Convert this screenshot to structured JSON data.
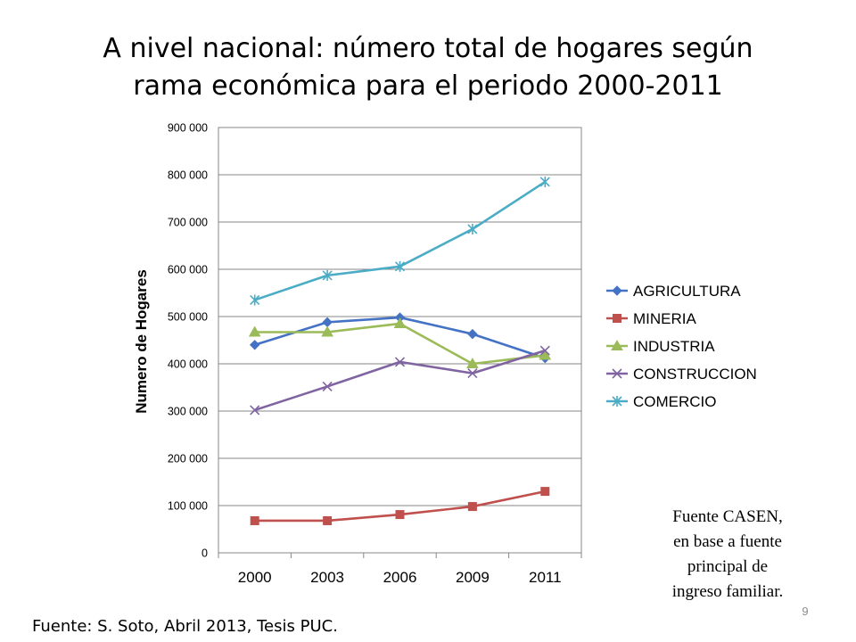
{
  "slide": {
    "title_line1": "A nivel nacional: número total de hogares según",
    "title_line2": "rama económica para el periodo 2000-2011",
    "note_line1": "Fuente CASEN,",
    "note_line2": "en base a fuente",
    "note_line3": "principal de",
    "note_line4": "ingreso familiar.",
    "source": "Fuente: S. Soto, Abril 2013, Tesis PUC.",
    "page_number": "9"
  },
  "chart_data": {
    "type": "line",
    "title": "",
    "xlabel": "",
    "ylabel": "Numero de Hogares",
    "categories": [
      "2000",
      "2003",
      "2006",
      "2009",
      "2011"
    ],
    "ylim": [
      0,
      900000
    ],
    "yticks": [
      0,
      100000,
      200000,
      300000,
      400000,
      500000,
      600000,
      700000,
      800000,
      900000
    ],
    "ytick_labels": [
      "0",
      "100 000",
      "200 000",
      "300 000",
      "400 000",
      "500 000",
      "600 000",
      "700 000",
      "800 000",
      "900 000"
    ],
    "grid": true,
    "legend_position": "right",
    "series": [
      {
        "name": "AGRICULTURA",
        "values": [
          440000,
          488000,
          498000,
          463000,
          412000
        ],
        "color": "#4472C4",
        "marker": "diamond"
      },
      {
        "name": "MINERIA",
        "values": [
          68000,
          68000,
          81000,
          98000,
          130000
        ],
        "color": "#C0504D",
        "marker": "square"
      },
      {
        "name": "INDUSTRIA",
        "values": [
          467000,
          467000,
          485000,
          400000,
          418000
        ],
        "color": "#9BBB59",
        "marker": "triangle"
      },
      {
        "name": "CONSTRUCCION",
        "values": [
          302000,
          352000,
          404000,
          380000,
          428000
        ],
        "color": "#8064A2",
        "marker": "x"
      },
      {
        "name": "COMERCIO",
        "values": [
          535000,
          587000,
          606000,
          685000,
          785000
        ],
        "color": "#4BACC6",
        "marker": "star"
      }
    ]
  }
}
